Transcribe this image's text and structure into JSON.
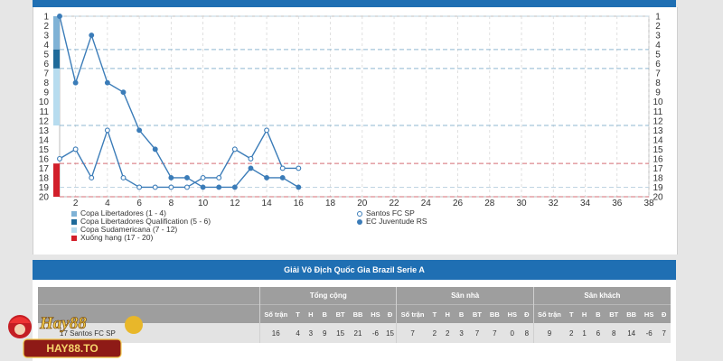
{
  "colors": {
    "line": "#3b7cb8",
    "band_libertadores": "#7fb2d6",
    "band_libertadores_qual": "#1e6a9a",
    "band_sudamericana": "#b7dcef",
    "band_relegation": "#d21e2a",
    "header_blue": "#1f6fb3",
    "table_head": "#9e9e9e"
  },
  "chart_data": {
    "type": "line",
    "x": [
      1,
      2,
      3,
      4,
      5,
      6,
      7,
      8,
      9,
      10,
      11,
      12,
      13,
      14,
      15,
      16
    ],
    "xlim": [
      1,
      38
    ],
    "ylim": [
      1,
      20
    ],
    "x_ticks": [
      "2",
      "4",
      "6",
      "8",
      "10",
      "12",
      "14",
      "16",
      "18",
      "20",
      "22",
      "24",
      "26",
      "28",
      "30",
      "32",
      "34",
      "36",
      "38"
    ],
    "y_ticks": [
      "1",
      "2",
      "3",
      "4",
      "5",
      "6",
      "7",
      "8",
      "9",
      "10",
      "11",
      "12",
      "13",
      "14",
      "15",
      "16",
      "17",
      "18",
      "19",
      "20"
    ],
    "y_reversed": true,
    "zones": [
      {
        "label": "Copa Libertadores (1 - 4)",
        "from": 1,
        "to": 4,
        "color": "#7fb2d6"
      },
      {
        "label": "Copa Libertadores Qualification (5 - 6)",
        "from": 5,
        "to": 6,
        "color": "#1e6a9a"
      },
      {
        "label": "Copa Sudamericana (7 - 12)",
        "from": 7,
        "to": 12,
        "color": "#b7dcef"
      },
      {
        "label": "Xuống hạng (17 - 20)",
        "from": 17,
        "to": 20,
        "color": "#d21e2a"
      }
    ],
    "series": [
      {
        "name": "Santos FC SP",
        "marker": "open",
        "values": [
          16,
          15,
          18,
          13,
          18,
          19,
          19,
          19,
          19,
          18,
          18,
          15,
          16,
          13,
          17,
          17
        ]
      },
      {
        "name": "EC Juventude RS",
        "marker": "filled",
        "values": [
          1,
          8,
          3,
          8,
          9,
          13,
          15,
          18,
          18,
          19,
          19,
          19,
          17,
          18,
          18,
          19
        ]
      }
    ],
    "grid": true
  },
  "table": {
    "title": "Giải Vô Địch Quốc Gia Brazil Serie A",
    "groups": [
      "Tổng cộng",
      "Sân nhà",
      "Sân khách"
    ],
    "sub_headers": [
      "Số trận",
      "T",
      "H",
      "B",
      "BT",
      "BB",
      "HS",
      "Đ"
    ],
    "rows": [
      {
        "rank": "17",
        "team": "Santos FC SP",
        "total": [
          "16",
          "4",
          "3",
          "9",
          "15",
          "21",
          "-6",
          "15"
        ],
        "home": [
          "7",
          "2",
          "2",
          "3",
          "7",
          "7",
          "0",
          "8"
        ],
        "away": [
          "9",
          "2",
          "1",
          "6",
          "8",
          "14",
          "-6",
          "7"
        ]
      }
    ]
  },
  "brand": {
    "logo_text": "HAY88.TO"
  }
}
